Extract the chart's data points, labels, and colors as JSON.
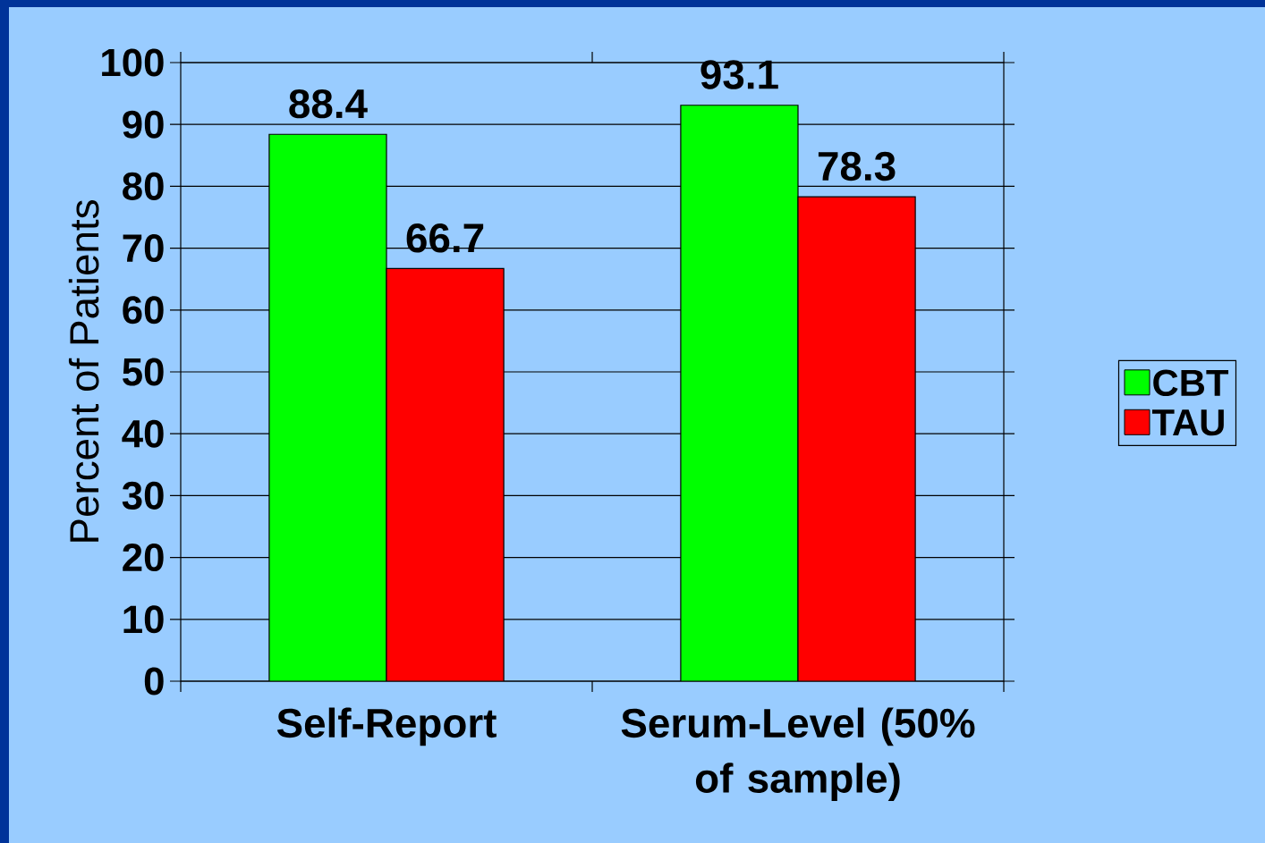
{
  "chart_data": {
    "type": "bar",
    "categories": [
      "Self-Report",
      "Serum-Level (50% of sample)"
    ],
    "series": [
      {
        "name": "CBT",
        "color": "#00ff00",
        "values": [
          88.4,
          93.1
        ]
      },
      {
        "name": "TAU",
        "color": "#ff0000",
        "values": [
          66.7,
          78.3
        ]
      }
    ],
    "ylabel": "Percent of Patients",
    "ylim": [
      0,
      100
    ],
    "yticks": [
      0,
      10,
      20,
      30,
      40,
      50,
      60,
      70,
      80,
      90,
      100
    ],
    "grid": "y",
    "legend": "right",
    "data_labels": true
  }
}
